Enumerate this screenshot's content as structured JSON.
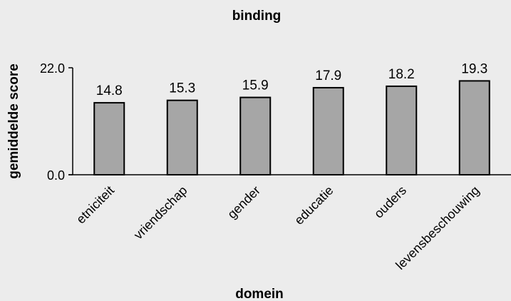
{
  "chart_data": {
    "type": "bar",
    "title": "binding",
    "xlabel": "domein",
    "ylabel": "gemiddelde score",
    "categories": [
      "etniciteit",
      "vriendschap",
      "gender",
      "educatie",
      "ouders",
      "levensbeschouwing"
    ],
    "values": [
      14.8,
      15.3,
      15.9,
      17.9,
      18.2,
      19.3
    ],
    "data_labels": [
      "14.8",
      "15.3",
      "15.9",
      "17.9",
      "18.2",
      "19.3"
    ],
    "ylim": [
      0,
      22
    ],
    "yticks": [
      "0.0",
      "22.0"
    ],
    "grid": false,
    "legend": "none",
    "colors": {
      "bar_fill": "#a6a6a6",
      "bar_stroke": "#000000",
      "background": "#ececec"
    }
  }
}
